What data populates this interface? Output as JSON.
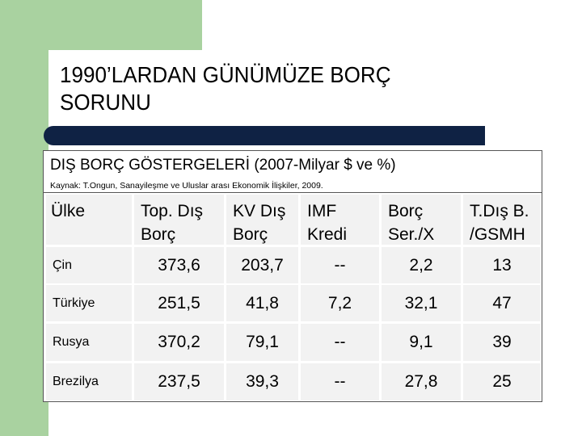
{
  "slide": {
    "title": "1990’LARDAN GÜNÜMÜZE BORÇ SORUNU",
    "accent_color": "#0f2244",
    "side_color": "#a9d2a0"
  },
  "table": {
    "title": "DIŞ BORÇ GÖSTERGELERİ (2007-Milyar $ ve %)",
    "source": "Kaynak: T.Ongun, Sanayileşme ve Uluslar arası Ekonomik İlişkiler, 2009.",
    "headers": [
      {
        "line1": "Ülke",
        "line2": ""
      },
      {
        "line1": "Top. Dış",
        "line2": "Borç"
      },
      {
        "line1": "KV Dış",
        "line2": "Borç"
      },
      {
        "line1": "IMF",
        "line2": "Kredi"
      },
      {
        "line1": "Borç",
        "line2": "Ser./X"
      },
      {
        "line1": "T.Dış B.",
        "line2": "/GSMH"
      }
    ],
    "rows": [
      {
        "country": "Çin",
        "values": [
          "373,6",
          "203,7",
          "--",
          "2,2",
          "13"
        ]
      },
      {
        "country": "Türkiye",
        "values": [
          "251,5",
          "41,8",
          "7,2",
          "32,1",
          "47"
        ]
      },
      {
        "country": "Rusya",
        "values": [
          "370,2",
          "79,1",
          "--",
          "9,1",
          "39"
        ]
      },
      {
        "country": "Brezilya",
        "values": [
          "237,5",
          "39,3",
          "--",
          "27,8",
          "25"
        ]
      }
    ]
  }
}
